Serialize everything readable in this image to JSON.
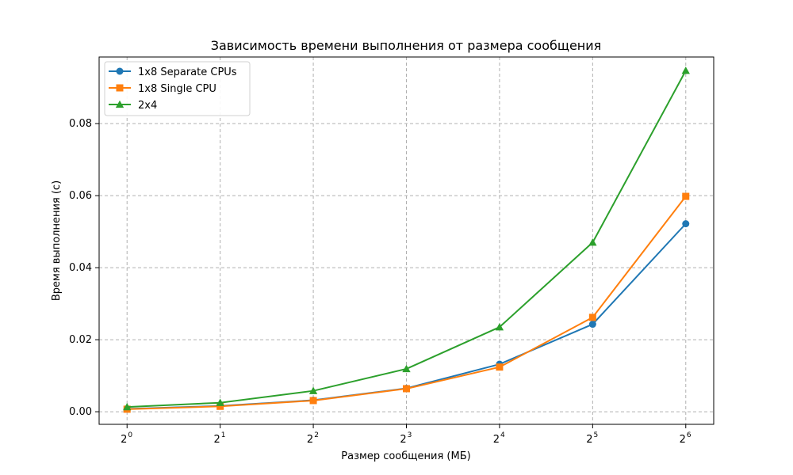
{
  "chart_data": {
    "type": "line",
    "title": "Зависимость времени выполнения от размера сообщения",
    "xlabel": "Размер сообщения (МБ)",
    "ylabel": "Время выполнения (с)",
    "x_scale": "log2",
    "x": [
      1,
      2,
      4,
      8,
      16,
      32,
      64
    ],
    "x_tick_base": "2",
    "x_tick_exponents": [
      "0",
      "1",
      "2",
      "3",
      "4",
      "5",
      "6"
    ],
    "y_ticks": [
      "0.00",
      "0.02",
      "0.04",
      "0.06",
      "0.08"
    ],
    "ylim": [
      -0.0035,
      0.0985
    ],
    "grid": true,
    "legend_position": "top-left",
    "series": [
      {
        "name": "1x8 Separate CPUs",
        "color": "#1f77b4",
        "marker": "circle",
        "values": [
          0.0008,
          0.0016,
          0.0032,
          0.0065,
          0.0132,
          0.0243,
          0.0522
        ]
      },
      {
        "name": "1x8 Single CPU",
        "color": "#ff7f0e",
        "marker": "square",
        "values": [
          0.0007,
          0.0015,
          0.0031,
          0.0064,
          0.0124,
          0.0262,
          0.0598
        ]
      },
      {
        "name": "2x4",
        "color": "#2ca02c",
        "marker": "triangle",
        "values": [
          0.0013,
          0.0025,
          0.0058,
          0.0119,
          0.0235,
          0.047,
          0.0947
        ]
      }
    ]
  }
}
